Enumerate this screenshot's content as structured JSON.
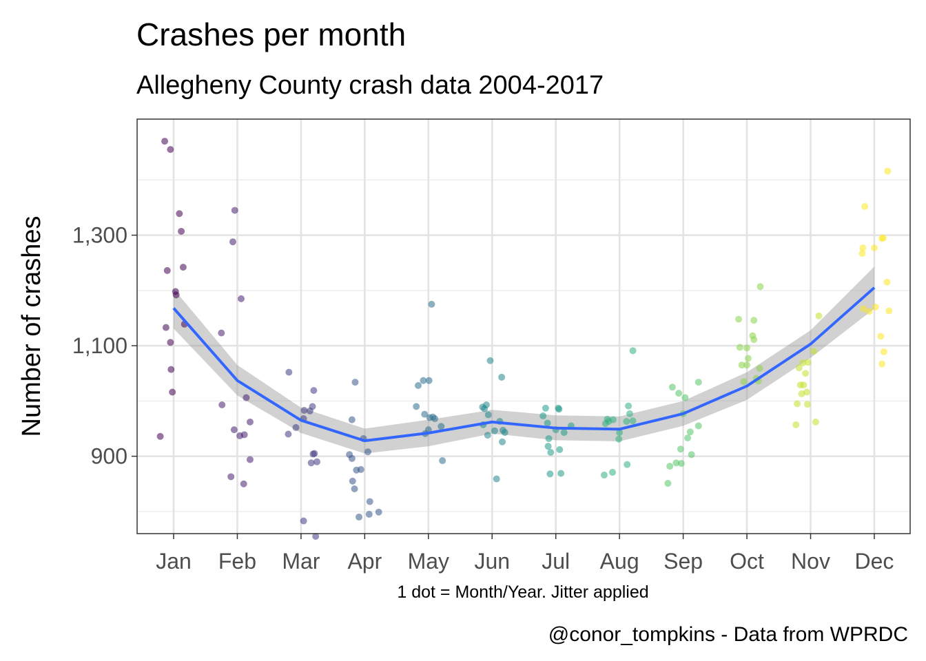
{
  "chart_data": {
    "type": "scatter",
    "title": "Crashes per month",
    "subtitle": "Allegheny County crash data 2004-2017",
    "xlabel": "1 dot = Month/Year. Jitter applied",
    "ylabel": "Number of crashes",
    "caption": "@conor_tompkins - Data from WPRDC",
    "categories": [
      "Jan",
      "Feb",
      "Mar",
      "Apr",
      "May",
      "Jun",
      "Jul",
      "Aug",
      "Sep",
      "Oct",
      "Nov",
      "Dec"
    ],
    "y_ticks": [
      900,
      1100,
      1300
    ],
    "y_tick_labels": [
      "900",
      "1,100",
      "1,300"
    ],
    "ylim": [
      760,
      1510
    ],
    "grid": true,
    "legend": "none",
    "point_colors": [
      "#440154",
      "#482878",
      "#3e4989",
      "#31688e",
      "#26828e",
      "#1f9e89",
      "#35b779",
      "#6ece58",
      "#b5de2b",
      "#fde725"
    ],
    "points": [
      {
        "m": "Jan",
        "dx": -0.21,
        "y": 936
      },
      {
        "m": "Jan",
        "dx": -0.14,
        "y": 1470
      },
      {
        "m": "Jan",
        "dx": -0.12,
        "y": 1133
      },
      {
        "m": "Jan",
        "dx": -0.1,
        "y": 1236
      },
      {
        "m": "Jan",
        "dx": -0.05,
        "y": 1455
      },
      {
        "m": "Jan",
        "dx": -0.05,
        "y": 1106
      },
      {
        "m": "Jan",
        "dx": -0.04,
        "y": 1057
      },
      {
        "m": "Jan",
        "dx": -0.02,
        "y": 1016
      },
      {
        "m": "Jan",
        "dx": 0.03,
        "y": 1198
      },
      {
        "m": "Jan",
        "dx": 0.04,
        "y": 1192
      },
      {
        "m": "Jan",
        "dx": 0.09,
        "y": 1339
      },
      {
        "m": "Jan",
        "dx": 0.12,
        "y": 1307
      },
      {
        "m": "Jan",
        "dx": 0.15,
        "y": 1242
      },
      {
        "m": "Jan",
        "dx": 0.17,
        "y": 1139
      },
      {
        "m": "Feb",
        "dx": -0.25,
        "y": 1123
      },
      {
        "m": "Feb",
        "dx": -0.24,
        "y": 993
      },
      {
        "m": "Feb",
        "dx": -0.1,
        "y": 863
      },
      {
        "m": "Feb",
        "dx": -0.07,
        "y": 1288
      },
      {
        "m": "Feb",
        "dx": -0.05,
        "y": 948
      },
      {
        "m": "Feb",
        "dx": -0.04,
        "y": 1345
      },
      {
        "m": "Feb",
        "dx": 0.04,
        "y": 937
      },
      {
        "m": "Feb",
        "dx": 0.06,
        "y": 1185
      },
      {
        "m": "Feb",
        "dx": 0.1,
        "y": 850
      },
      {
        "m": "Feb",
        "dx": 0.11,
        "y": 939
      },
      {
        "m": "Feb",
        "dx": 0.14,
        "y": 1006
      },
      {
        "m": "Feb",
        "dx": 0.2,
        "y": 962
      },
      {
        "m": "Feb",
        "dx": 0.2,
        "y": 894
      },
      {
        "m": "Mar",
        "dx": -0.2,
        "y": 940
      },
      {
        "m": "Mar",
        "dx": -0.19,
        "y": 1052
      },
      {
        "m": "Mar",
        "dx": -0.08,
        "y": 952
      },
      {
        "m": "Mar",
        "dx": 0.04,
        "y": 783
      },
      {
        "m": "Mar",
        "dx": 0.04,
        "y": 968
      },
      {
        "m": "Mar",
        "dx": 0.05,
        "y": 983
      },
      {
        "m": "Mar",
        "dx": 0.14,
        "y": 982
      },
      {
        "m": "Mar",
        "dx": 0.16,
        "y": 888
      },
      {
        "m": "Mar",
        "dx": 0.18,
        "y": 990
      },
      {
        "m": "Mar",
        "dx": 0.19,
        "y": 904
      },
      {
        "m": "Mar",
        "dx": 0.2,
        "y": 1019
      },
      {
        "m": "Mar",
        "dx": 0.21,
        "y": 905
      },
      {
        "m": "Mar",
        "dx": 0.23,
        "y": 755
      },
      {
        "m": "Mar",
        "dx": 0.25,
        "y": 890
      },
      {
        "m": "Apr",
        "dx": -0.24,
        "y": 903
      },
      {
        "m": "Apr",
        "dx": -0.2,
        "y": 896
      },
      {
        "m": "Apr",
        "dx": -0.2,
        "y": 966
      },
      {
        "m": "Apr",
        "dx": -0.19,
        "y": 855
      },
      {
        "m": "Apr",
        "dx": -0.16,
        "y": 841
      },
      {
        "m": "Apr",
        "dx": -0.15,
        "y": 1034
      },
      {
        "m": "Apr",
        "dx": -0.13,
        "y": 875
      },
      {
        "m": "Apr",
        "dx": -0.09,
        "y": 790
      },
      {
        "m": "Apr",
        "dx": -0.06,
        "y": 876
      },
      {
        "m": "Apr",
        "dx": -0.02,
        "y": 932
      },
      {
        "m": "Apr",
        "dx": 0.05,
        "y": 908
      },
      {
        "m": "Apr",
        "dx": 0.07,
        "y": 795
      },
      {
        "m": "Apr",
        "dx": 0.08,
        "y": 818
      },
      {
        "m": "Apr",
        "dx": 0.22,
        "y": 799
      },
      {
        "m": "May",
        "dx": -0.19,
        "y": 990
      },
      {
        "m": "May",
        "dx": -0.16,
        "y": 1028
      },
      {
        "m": "May",
        "dx": -0.08,
        "y": 1037
      },
      {
        "m": "May",
        "dx": -0.06,
        "y": 976
      },
      {
        "m": "May",
        "dx": -0.05,
        "y": 941
      },
      {
        "m": "May",
        "dx": 0.0,
        "y": 948
      },
      {
        "m": "May",
        "dx": 0.01,
        "y": 1037
      },
      {
        "m": "May",
        "dx": 0.02,
        "y": 970
      },
      {
        "m": "May",
        "dx": 0.05,
        "y": 1175
      },
      {
        "m": "May",
        "dx": 0.07,
        "y": 971
      },
      {
        "m": "May",
        "dx": 0.1,
        "y": 968
      },
      {
        "m": "May",
        "dx": 0.2,
        "y": 954
      },
      {
        "m": "May",
        "dx": 0.22,
        "y": 892
      },
      {
        "m": "Jun",
        "dx": -0.15,
        "y": 989
      },
      {
        "m": "Jun",
        "dx": -0.14,
        "y": 957
      },
      {
        "m": "Jun",
        "dx": -0.12,
        "y": 986
      },
      {
        "m": "Jun",
        "dx": -0.09,
        "y": 993
      },
      {
        "m": "Jun",
        "dx": -0.07,
        "y": 938
      },
      {
        "m": "Jun",
        "dx": -0.06,
        "y": 975
      },
      {
        "m": "Jun",
        "dx": -0.03,
        "y": 1073
      },
      {
        "m": "Jun",
        "dx": 0.04,
        "y": 946
      },
      {
        "m": "Jun",
        "dx": 0.07,
        "y": 859
      },
      {
        "m": "Jun",
        "dx": 0.12,
        "y": 963
      },
      {
        "m": "Jun",
        "dx": 0.15,
        "y": 1043
      },
      {
        "m": "Jun",
        "dx": 0.16,
        "y": 926
      },
      {
        "m": "Jun",
        "dx": 0.17,
        "y": 947
      },
      {
        "m": "Jun",
        "dx": 0.2,
        "y": 943
      },
      {
        "m": "Jul",
        "dx": -0.2,
        "y": 973
      },
      {
        "m": "Jul",
        "dx": -0.16,
        "y": 987
      },
      {
        "m": "Jul",
        "dx": -0.13,
        "y": 960
      },
      {
        "m": "Jul",
        "dx": -0.12,
        "y": 918
      },
      {
        "m": "Jul",
        "dx": -0.11,
        "y": 932
      },
      {
        "m": "Jul",
        "dx": -0.09,
        "y": 868
      },
      {
        "m": "Jul",
        "dx": -0.08,
        "y": 907
      },
      {
        "m": "Jul",
        "dx": 0.0,
        "y": 948
      },
      {
        "m": "Jul",
        "dx": 0.04,
        "y": 987
      },
      {
        "m": "Jul",
        "dx": 0.05,
        "y": 985
      },
      {
        "m": "Jul",
        "dx": 0.06,
        "y": 912
      },
      {
        "m": "Jul",
        "dx": 0.08,
        "y": 869
      },
      {
        "m": "Jul",
        "dx": 0.13,
        "y": 943
      },
      {
        "m": "Jul",
        "dx": 0.24,
        "y": 955
      },
      {
        "m": "Aug",
        "dx": -0.24,
        "y": 866
      },
      {
        "m": "Aug",
        "dx": -0.22,
        "y": 959
      },
      {
        "m": "Aug",
        "dx": -0.19,
        "y": 967
      },
      {
        "m": "Aug",
        "dx": -0.17,
        "y": 963
      },
      {
        "m": "Aug",
        "dx": -0.11,
        "y": 871
      },
      {
        "m": "Aug",
        "dx": -0.1,
        "y": 966
      },
      {
        "m": "Aug",
        "dx": -0.01,
        "y": 931
      },
      {
        "m": "Aug",
        "dx": 0.0,
        "y": 943
      },
      {
        "m": "Aug",
        "dx": 0.11,
        "y": 963
      },
      {
        "m": "Aug",
        "dx": 0.12,
        "y": 885
      },
      {
        "m": "Aug",
        "dx": 0.14,
        "y": 991
      },
      {
        "m": "Aug",
        "dx": 0.16,
        "y": 977
      },
      {
        "m": "Aug",
        "dx": 0.21,
        "y": 964
      },
      {
        "m": "Aug",
        "dx": 0.21,
        "y": 1091
      },
      {
        "m": "Sep",
        "dx": -0.24,
        "y": 851
      },
      {
        "m": "Sep",
        "dx": -0.21,
        "y": 882
      },
      {
        "m": "Sep",
        "dx": -0.17,
        "y": 1025
      },
      {
        "m": "Sep",
        "dx": -0.11,
        "y": 888
      },
      {
        "m": "Sep",
        "dx": -0.07,
        "y": 1014
      },
      {
        "m": "Sep",
        "dx": -0.04,
        "y": 913
      },
      {
        "m": "Sep",
        "dx": -0.03,
        "y": 887
      },
      {
        "m": "Sep",
        "dx": 0.0,
        "y": 977
      },
      {
        "m": "Sep",
        "dx": 0.03,
        "y": 1006
      },
      {
        "m": "Sep",
        "dx": 0.07,
        "y": 933
      },
      {
        "m": "Sep",
        "dx": 0.11,
        "y": 944
      },
      {
        "m": "Sep",
        "dx": 0.13,
        "y": 903
      },
      {
        "m": "Sep",
        "dx": 0.24,
        "y": 955
      },
      {
        "m": "Sep",
        "dx": 0.24,
        "y": 1034
      },
      {
        "m": "Oct",
        "dx": -0.13,
        "y": 1148
      },
      {
        "m": "Oct",
        "dx": -0.11,
        "y": 1097
      },
      {
        "m": "Oct",
        "dx": -0.08,
        "y": 1065
      },
      {
        "m": "Oct",
        "dx": -0.05,
        "y": 1035
      },
      {
        "m": "Oct",
        "dx": 0.0,
        "y": 1096
      },
      {
        "m": "Oct",
        "dx": 0.0,
        "y": 1065
      },
      {
        "m": "Oct",
        "dx": 0.02,
        "y": 1077
      },
      {
        "m": "Oct",
        "dx": 0.09,
        "y": 1118
      },
      {
        "m": "Oct",
        "dx": 0.11,
        "y": 1146
      },
      {
        "m": "Oct",
        "dx": 0.11,
        "y": 1111
      },
      {
        "m": "Oct",
        "dx": 0.15,
        "y": 1041
      },
      {
        "m": "Oct",
        "dx": 0.18,
        "y": 1036
      },
      {
        "m": "Oct",
        "dx": 0.2,
        "y": 1059
      },
      {
        "m": "Oct",
        "dx": 0.21,
        "y": 1207
      },
      {
        "m": "Nov",
        "dx": -0.23,
        "y": 957
      },
      {
        "m": "Nov",
        "dx": -0.21,
        "y": 995
      },
      {
        "m": "Nov",
        "dx": -0.18,
        "y": 1060
      },
      {
        "m": "Nov",
        "dx": -0.16,
        "y": 1029
      },
      {
        "m": "Nov",
        "dx": -0.14,
        "y": 1013
      },
      {
        "m": "Nov",
        "dx": -0.12,
        "y": 1069
      },
      {
        "m": "Nov",
        "dx": -0.11,
        "y": 1029
      },
      {
        "m": "Nov",
        "dx": -0.08,
        "y": 1050
      },
      {
        "m": "Nov",
        "dx": -0.06,
        "y": 1016
      },
      {
        "m": "Nov",
        "dx": -0.05,
        "y": 994
      },
      {
        "m": "Nov",
        "dx": -0.04,
        "y": 1070
      },
      {
        "m": "Nov",
        "dx": 0.05,
        "y": 1090
      },
      {
        "m": "Nov",
        "dx": 0.08,
        "y": 962
      },
      {
        "m": "Nov",
        "dx": 0.13,
        "y": 1154
      },
      {
        "m": "Dec",
        "dx": -0.19,
        "y": 1267
      },
      {
        "m": "Dec",
        "dx": -0.18,
        "y": 1277
      },
      {
        "m": "Dec",
        "dx": -0.17,
        "y": 1167
      },
      {
        "m": "Dec",
        "dx": -0.15,
        "y": 1352
      },
      {
        "m": "Dec",
        "dx": -0.08,
        "y": 1162
      },
      {
        "m": "Dec",
        "dx": 0.0,
        "y": 1277
      },
      {
        "m": "Dec",
        "dx": 0.02,
        "y": 1170
      },
      {
        "m": "Dec",
        "dx": 0.1,
        "y": 1117
      },
      {
        "m": "Dec",
        "dx": 0.12,
        "y": 1294
      },
      {
        "m": "Dec",
        "dx": 0.12,
        "y": 1067
      },
      {
        "m": "Dec",
        "dx": 0.14,
        "y": 1295
      },
      {
        "m": "Dec",
        "dx": 0.15,
        "y": 1089
      },
      {
        "m": "Dec",
        "dx": 0.2,
        "y": 1215
      },
      {
        "m": "Dec",
        "dx": 0.21,
        "y": 1416
      },
      {
        "m": "Dec",
        "dx": 0.23,
        "y": 1163
      }
    ],
    "series": [
      {
        "name": "",
        "type": "line",
        "color": "#3366ff",
        "values": [
          1168,
          1037,
          965,
          928,
          942,
          962,
          951,
          949,
          977,
          1027,
          1103,
          1205
        ],
        "band_lower": [
          1131,
          1010,
          942,
          905,
          918,
          941,
          929,
          927,
          955,
          1002,
          1078,
          1167
        ],
        "band_upper": [
          1203,
          1065,
          988,
          950,
          966,
          984,
          974,
          972,
          1000,
          1052,
          1128,
          1243
        ]
      }
    ]
  }
}
